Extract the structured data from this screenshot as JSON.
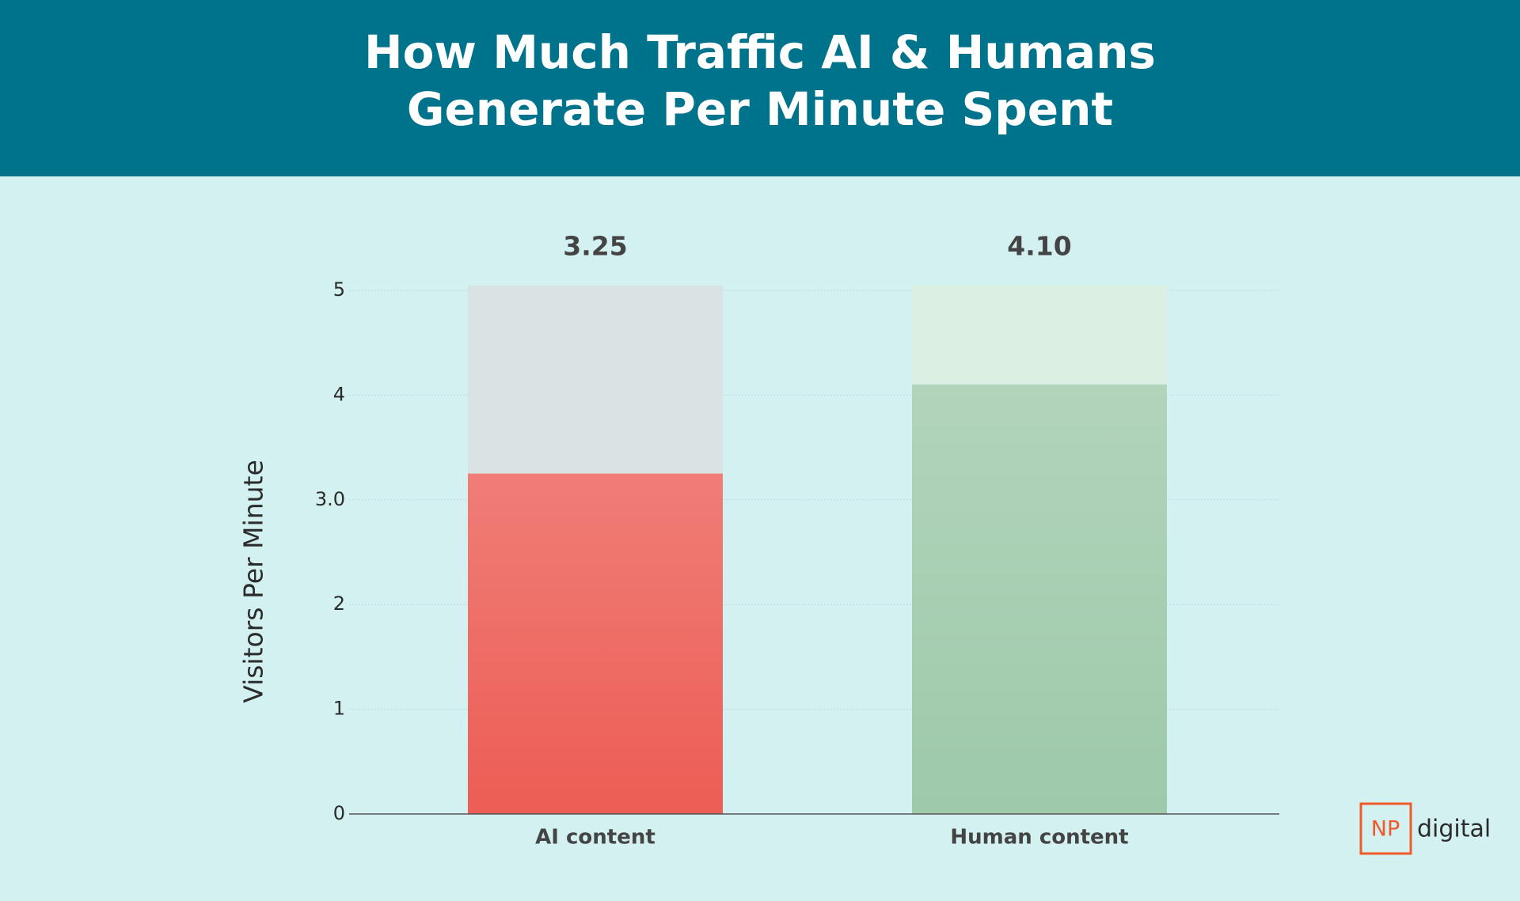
{
  "chart_data": {
    "type": "bar",
    "title": "How Much Traffic AI & Humans Generate Per Minute Spent",
    "y_label": "Visitors Per Minute",
    "categories": [
      "AI content",
      "Human content"
    ],
    "values": [
      3.25,
      4.1
    ],
    "value_labels": [
      "3.25",
      "4.10"
    ],
    "colors": [
      "#ec5d55",
      "#9ec9aa"
    ],
    "ylim": [
      0,
      5
    ],
    "yticks": [
      0,
      1,
      2,
      {
        "value": 3,
        "label": "3.0"
      },
      4,
      5
    ],
    "grid": true
  },
  "logo": {
    "mark": "NP",
    "text": "digital"
  }
}
